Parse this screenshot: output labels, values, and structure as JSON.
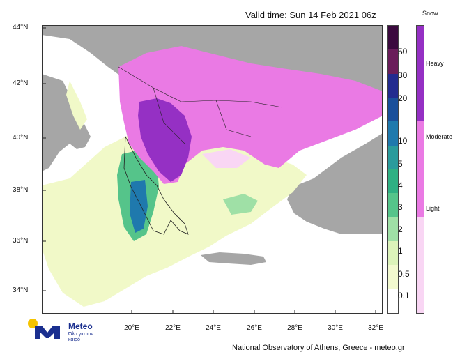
{
  "header": {
    "valid_time": "Valid time: Sun 14 Feb 2021 06z"
  },
  "map": {
    "lat_labels": [
      "44°N",
      "42°N",
      "40°N",
      "38°N",
      "36°N",
      "34°N"
    ],
    "lon_labels": [
      "20°E",
      "22°E",
      "24°E",
      "26°E",
      "28°E",
      "30°E",
      "32°E"
    ],
    "colors": {
      "sea": "#ffffff",
      "land_no_data": "#a6a6a6",
      "light_precip": "#f1f9c8"
    }
  },
  "precip_legend": {
    "labels": [
      "50",
      "30",
      "20",
      "10",
      "5",
      "4",
      "3",
      "2",
      "1",
      "0.5",
      "0.1"
    ],
    "colors": [
      "#3b0a3e",
      "#6a1d5a",
      "#232b8f",
      "#1a4f9a",
      "#1f79ad",
      "#2a9b9c",
      "#2fb083",
      "#55c48a",
      "#9fe0a6",
      "#dcf3ba",
      "#f2f9cf",
      "#ffffff"
    ]
  },
  "snow_legend": {
    "title": "Snow",
    "labels": [
      "Heavy",
      "Moderate",
      "Light"
    ],
    "colors": [
      "#9530c4",
      "#ea7ae4",
      "#f9d6f4"
    ]
  },
  "logo": {
    "name": "Meteo",
    "subtitle": "Όλα για τον καιρό",
    "colors": {
      "sun": "#f5c400",
      "mark": "#1a2f8f"
    }
  },
  "footer": {
    "credit": "National Observatory of Athens, Greece - meteo.gr"
  }
}
